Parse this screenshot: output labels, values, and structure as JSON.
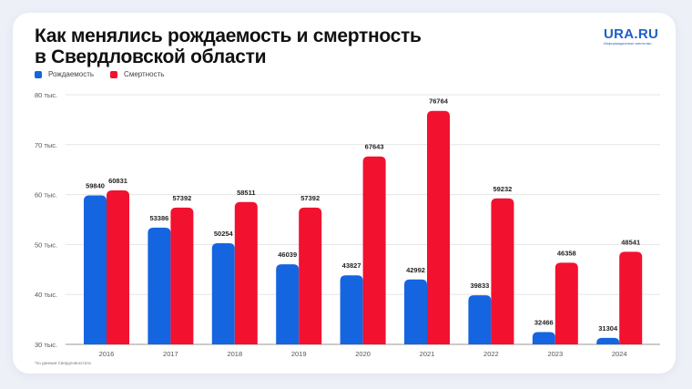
{
  "title_line1": "Как менялись рождаемость и смертность",
  "title_line2": "в Свердловской области",
  "logo": {
    "main": "URA.RU",
    "sub": "Информационное агентство"
  },
  "footnote": "*по данным Свердловскстата",
  "colors": {
    "birth": "#1565e0",
    "death": "#f2112f"
  },
  "chart_data": {
    "type": "bar",
    "title": "Как менялись рождаемость и смертность в Свердловской области",
    "categories": [
      "2016",
      "2017",
      "2018",
      "2019",
      "2020",
      "2021",
      "2022",
      "2023",
      "2024"
    ],
    "series": [
      {
        "name": "Рождаемость",
        "values": [
          59840,
          53386,
          50254,
          46039,
          43827,
          42992,
          39833,
          32466,
          31304
        ]
      },
      {
        "name": "Смертность",
        "values": [
          60831,
          57392,
          58511,
          57392,
          67643,
          76764,
          59232,
          46358,
          48541
        ]
      }
    ],
    "ylim": [
      30000,
      80000
    ],
    "yticks": [
      30000,
      40000,
      50000,
      60000,
      70000,
      80000
    ],
    "ytick_labels": [
      "30 тыс.",
      "40 тыс.",
      "50 тыс.",
      "60 тыс.",
      "70 тыс.",
      "80 тыс."
    ],
    "legend_placement": "top-left",
    "grid": false
  }
}
